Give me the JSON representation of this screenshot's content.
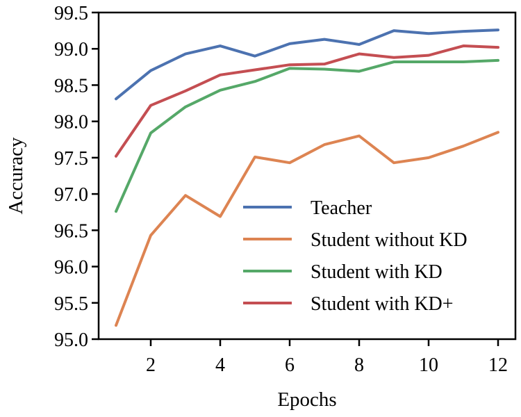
{
  "chart_data": {
    "type": "line",
    "title": "",
    "xlabel": "Epochs",
    "ylabel": "Accuracy",
    "x": [
      1,
      2,
      3,
      4,
      5,
      6,
      7,
      8,
      9,
      10,
      11,
      12
    ],
    "xlim": [
      0.5,
      12.5
    ],
    "ylim": [
      95.0,
      99.5
    ],
    "x_ticks": [
      2,
      4,
      6,
      8,
      10,
      12
    ],
    "x_tick_labels": [
      "2",
      "4",
      "6",
      "8",
      "10",
      "12"
    ],
    "y_ticks": [
      95.0,
      95.5,
      96.0,
      96.5,
      97.0,
      97.5,
      98.0,
      98.5,
      99.0,
      99.5
    ],
    "y_tick_labels": [
      "95.0",
      "95.5",
      "96.0",
      "96.5",
      "97.0",
      "97.5",
      "98.0",
      "98.5",
      "99.0",
      "99.5"
    ],
    "grid": false,
    "legend_position": "lower-right",
    "series": [
      {
        "name": "Teacher",
        "color": "#4c72b0",
        "values": [
          98.31,
          98.7,
          98.93,
          99.04,
          98.9,
          99.07,
          99.13,
          99.06,
          99.25,
          99.21,
          99.24,
          99.26
        ]
      },
      {
        "name": "Student without KD",
        "color": "#dd8452",
        "values": [
          95.19,
          96.43,
          96.98,
          96.69,
          97.51,
          97.43,
          97.68,
          97.8,
          97.43,
          97.5,
          97.66,
          97.85
        ]
      },
      {
        "name": "Student with KD",
        "color": "#55a868",
        "values": [
          96.76,
          97.84,
          98.2,
          98.43,
          98.55,
          98.73,
          98.72,
          98.69,
          98.82,
          98.82,
          98.82,
          98.84
        ]
      },
      {
        "name": "Student with KD+",
        "color": "#c44e52",
        "values": [
          97.52,
          98.22,
          98.42,
          98.64,
          98.71,
          98.78,
          98.79,
          98.93,
          98.88,
          98.91,
          99.04,
          99.02
        ]
      }
    ]
  }
}
